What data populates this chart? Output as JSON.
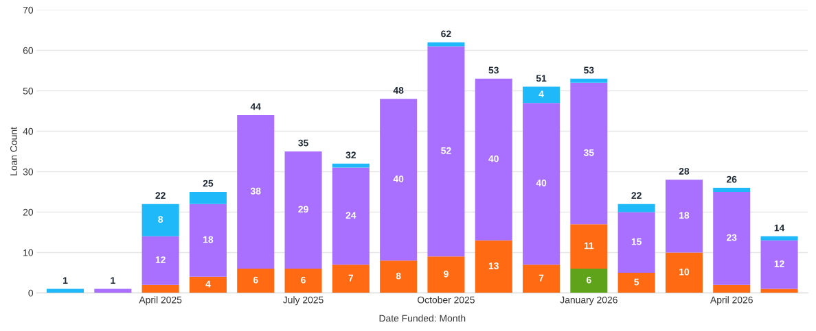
{
  "chart_data": {
    "type": "bar",
    "stacked": true,
    "xlabel": "Date Funded: Month",
    "ylabel": "Loan Count",
    "categories": [
      null,
      null,
      "April 2025",
      null,
      null,
      "July 2025",
      null,
      null,
      "October 2025",
      null,
      null,
      "January 2026",
      null,
      null,
      "April 2026",
      null
    ],
    "series": [
      {
        "color": "#5ea319",
        "values": [
          0,
          0,
          0,
          0,
          0,
          0,
          0,
          0,
          0,
          0,
          0,
          6,
          0,
          0,
          0,
          0
        ],
        "value_labels": [
          null,
          null,
          null,
          null,
          null,
          null,
          null,
          null,
          null,
          null,
          null,
          "6",
          null,
          null,
          null,
          null
        ]
      },
      {
        "color": "#ff6a13",
        "values": [
          0,
          0,
          2,
          4,
          6,
          6,
          7,
          8,
          9,
          13,
          7,
          11,
          5,
          10,
          2,
          1
        ],
        "value_labels": [
          null,
          null,
          null,
          "4",
          "6",
          "6",
          "7",
          "8",
          "9",
          "13",
          "7",
          "11",
          "5",
          "10",
          null,
          null
        ]
      },
      {
        "color": "#a970ff",
        "values": [
          0,
          1,
          12,
          18,
          38,
          29,
          24,
          40,
          52,
          40,
          40,
          35,
          15,
          18,
          23,
          12
        ],
        "value_labels": [
          null,
          null,
          "12",
          "18",
          "38",
          "29",
          "24",
          "40",
          "52",
          "40",
          "40",
          "35",
          "15",
          "18",
          "23",
          "12"
        ]
      },
      {
        "color": "#1fb8f8",
        "values": [
          1,
          0,
          8,
          3,
          0,
          0,
          1,
          0,
          1,
          0,
          4,
          1,
          2,
          0,
          1,
          1
        ],
        "value_labels": [
          null,
          null,
          "8",
          null,
          null,
          null,
          null,
          null,
          null,
          null,
          "4",
          null,
          null,
          null,
          null,
          null
        ]
      }
    ],
    "totals": [
      "1",
      "1",
      "22",
      "25",
      "44",
      "35",
      "32",
      "48",
      "62",
      "53",
      "51",
      "53",
      "22",
      "28",
      "26",
      "14"
    ],
    "ylim": [
      0,
      70
    ],
    "yticks": [
      0,
      10,
      20,
      30,
      40,
      50,
      60,
      70
    ],
    "grid": "y",
    "legend": false
  }
}
